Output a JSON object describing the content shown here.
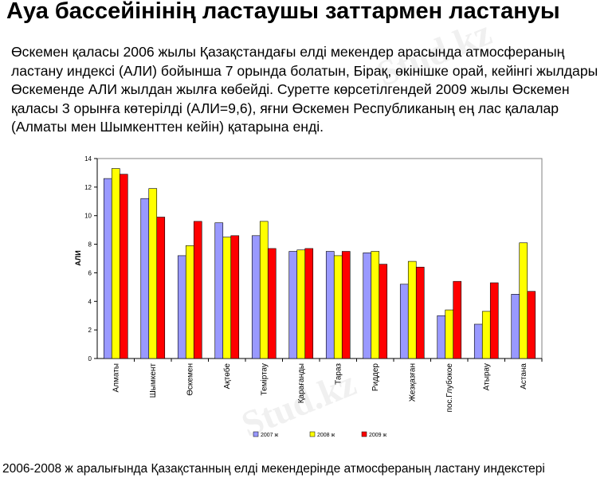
{
  "page": {
    "title": "Ауа бассейінінің ластаушы заттармен ластануы",
    "intro": " Өскемен қаласы 2006 жылы Қазақстандағы елді мекендер арасында атмосфераның ластану индексі (АЛИ)  бойынша 7 орында болатын, Бірақ, өкінішке орай, кейінгі жылдары Өскеменде АЛИ жылдан жылға көбейді. Суретте көрсетілгендей 2009 жылы Өскемен қаласы 3 орынға көтерілді (АЛИ=9,6), яғни Өскемен Республиканың ең лас қалалар (Алматы мен Шымкенттен кейін) қатарына енді.",
    "caption": "2006-2008 ж аралығында Қазақстанның елді мекендерінде атмосфераның ластану индекстері",
    "watermark": "Stud.kz"
  },
  "chart_data": {
    "type": "bar",
    "ylabel": "АЛИ",
    "xlabel": "",
    "ylim": [
      0,
      14
    ],
    "yticks": [
      0,
      2,
      4,
      6,
      8,
      10,
      12,
      14
    ],
    "grid": false,
    "legend_position": "bottom",
    "categories": [
      "Алматы",
      "Шымкент",
      "Өскемен",
      "Ақтөбе",
      "Теміртау",
      "Қарағанды",
      "Тараз",
      "Риддер",
      "Жезқазған",
      "пос.Глубокое",
      "Атырау",
      "Астана"
    ],
    "series": [
      {
        "name": "2007 ж",
        "color": "#9999ff",
        "values": [
          12.6,
          11.2,
          7.2,
          9.5,
          8.6,
          7.5,
          7.5,
          7.4,
          5.2,
          3.0,
          2.4,
          4.5
        ]
      },
      {
        "name": "2008 ж",
        "color": "#ffff00",
        "values": [
          13.3,
          11.9,
          7.9,
          8.5,
          9.6,
          7.6,
          7.2,
          7.5,
          6.8,
          3.4,
          3.3,
          8.1
        ]
      },
      {
        "name": "2009 ж",
        "color": "#ff0000",
        "values": [
          12.9,
          9.9,
          9.6,
          8.6,
          7.7,
          7.7,
          7.5,
          6.6,
          6.4,
          5.4,
          5.3,
          4.7
        ]
      }
    ]
  }
}
